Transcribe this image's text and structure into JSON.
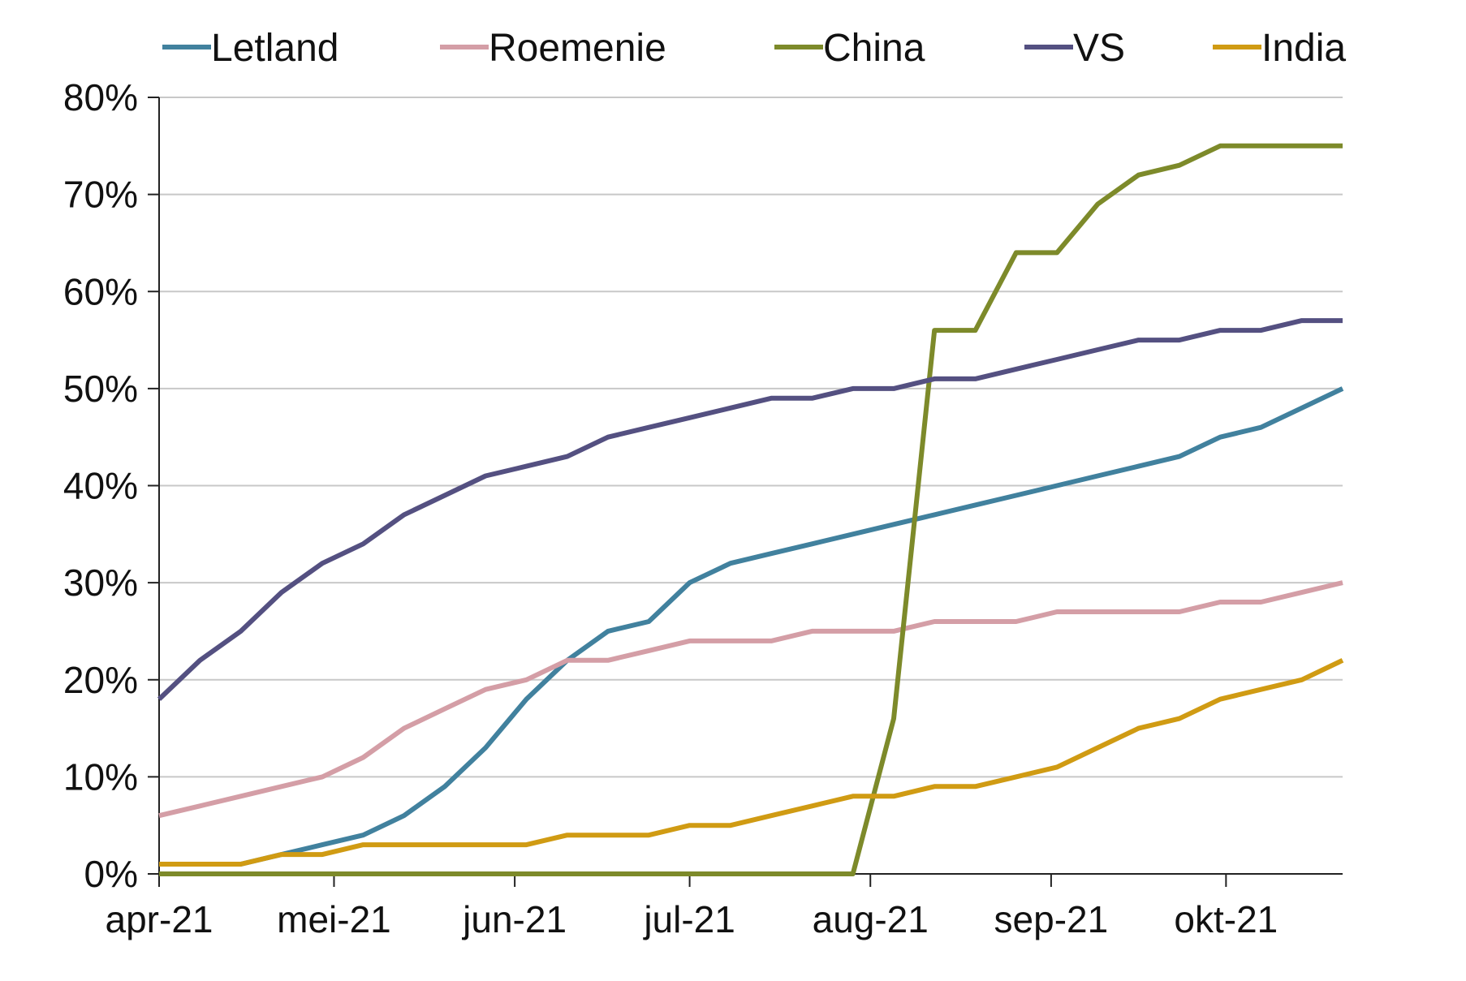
{
  "chart_data": {
    "type": "line",
    "title": "",
    "xlabel": "",
    "ylabel": "",
    "x_tick_labels": [
      "apr-21",
      "mei-21",
      "jun-21",
      "jul-21",
      "aug-21",
      "sep-21",
      "okt-21"
    ],
    "y_tick_labels": [
      "0%",
      "10%",
      "20%",
      "30%",
      "40%",
      "50%",
      "60%",
      "70%",
      "80%"
    ],
    "y_tick_values": [
      0,
      10,
      20,
      30,
      40,
      50,
      60,
      70,
      80
    ],
    "ylim": [
      0,
      80
    ],
    "x_range": [
      "2021-04-01",
      "2021-10-21"
    ],
    "grid": "horizontal",
    "legend_position": "top",
    "series": [
      {
        "name": "Letland",
        "color": "#41819e",
        "points": [
          [
            "2021-04-01",
            1
          ],
          [
            "2021-04-08",
            1
          ],
          [
            "2021-04-15",
            1
          ],
          [
            "2021-04-22",
            2
          ],
          [
            "2021-04-29",
            3
          ],
          [
            "2021-05-06",
            4
          ],
          [
            "2021-05-13",
            6
          ],
          [
            "2021-05-20",
            9
          ],
          [
            "2021-05-27",
            13
          ],
          [
            "2021-06-03",
            18
          ],
          [
            "2021-06-10",
            22
          ],
          [
            "2021-06-17",
            25
          ],
          [
            "2021-06-24",
            26
          ],
          [
            "2021-07-01",
            30
          ],
          [
            "2021-07-08",
            32
          ],
          [
            "2021-07-15",
            33
          ],
          [
            "2021-07-22",
            34
          ],
          [
            "2021-07-29",
            35
          ],
          [
            "2021-08-05",
            36
          ],
          [
            "2021-08-12",
            37
          ],
          [
            "2021-08-19",
            38
          ],
          [
            "2021-08-26",
            39
          ],
          [
            "2021-09-02",
            40
          ],
          [
            "2021-09-09",
            41
          ],
          [
            "2021-09-16",
            42
          ],
          [
            "2021-09-23",
            43
          ],
          [
            "2021-09-30",
            45
          ],
          [
            "2021-10-07",
            46
          ],
          [
            "2021-10-14",
            48
          ],
          [
            "2021-10-21",
            50
          ]
        ]
      },
      {
        "name": "Roemenie",
        "color": "#d49ea6",
        "points": [
          [
            "2021-04-01",
            6
          ],
          [
            "2021-04-08",
            7
          ],
          [
            "2021-04-15",
            8
          ],
          [
            "2021-04-22",
            9
          ],
          [
            "2021-04-29",
            10
          ],
          [
            "2021-05-06",
            12
          ],
          [
            "2021-05-13",
            15
          ],
          [
            "2021-05-20",
            17
          ],
          [
            "2021-05-27",
            19
          ],
          [
            "2021-06-03",
            20
          ],
          [
            "2021-06-10",
            22
          ],
          [
            "2021-06-17",
            22
          ],
          [
            "2021-06-24",
            23
          ],
          [
            "2021-07-01",
            24
          ],
          [
            "2021-07-08",
            24
          ],
          [
            "2021-07-15",
            24
          ],
          [
            "2021-07-22",
            25
          ],
          [
            "2021-07-29",
            25
          ],
          [
            "2021-08-05",
            25
          ],
          [
            "2021-08-12",
            26
          ],
          [
            "2021-08-19",
            26
          ],
          [
            "2021-08-26",
            26
          ],
          [
            "2021-09-02",
            27
          ],
          [
            "2021-09-09",
            27
          ],
          [
            "2021-09-16",
            27
          ],
          [
            "2021-09-23",
            27
          ],
          [
            "2021-09-30",
            28
          ],
          [
            "2021-10-07",
            28
          ],
          [
            "2021-10-14",
            29
          ],
          [
            "2021-10-21",
            30
          ]
        ]
      },
      {
        "name": "China",
        "color": "#7d8a2a",
        "points": [
          [
            "2021-04-01",
            0
          ],
          [
            "2021-07-29",
            0
          ],
          [
            "2021-08-05",
            16
          ],
          [
            "2021-08-12",
            56
          ],
          [
            "2021-08-19",
            56
          ],
          [
            "2021-08-26",
            64
          ],
          [
            "2021-09-02",
            64
          ],
          [
            "2021-09-09",
            69
          ],
          [
            "2021-09-16",
            72
          ],
          [
            "2021-09-23",
            73
          ],
          [
            "2021-09-30",
            75
          ],
          [
            "2021-10-07",
            75
          ],
          [
            "2021-10-14",
            75
          ],
          [
            "2021-10-21",
            75
          ]
        ]
      },
      {
        "name": "VS",
        "color": "#545081",
        "points": [
          [
            "2021-04-01",
            18
          ],
          [
            "2021-04-08",
            22
          ],
          [
            "2021-04-15",
            25
          ],
          [
            "2021-04-22",
            29
          ],
          [
            "2021-04-29",
            32
          ],
          [
            "2021-05-06",
            34
          ],
          [
            "2021-05-13",
            37
          ],
          [
            "2021-05-20",
            39
          ],
          [
            "2021-05-27",
            41
          ],
          [
            "2021-06-03",
            42
          ],
          [
            "2021-06-10",
            43
          ],
          [
            "2021-06-17",
            45
          ],
          [
            "2021-06-24",
            46
          ],
          [
            "2021-07-01",
            47
          ],
          [
            "2021-07-08",
            48
          ],
          [
            "2021-07-15",
            49
          ],
          [
            "2021-07-22",
            49
          ],
          [
            "2021-07-29",
            50
          ],
          [
            "2021-08-05",
            50
          ],
          [
            "2021-08-12",
            51
          ],
          [
            "2021-08-19",
            51
          ],
          [
            "2021-08-26",
            52
          ],
          [
            "2021-09-02",
            53
          ],
          [
            "2021-09-09",
            54
          ],
          [
            "2021-09-16",
            55
          ],
          [
            "2021-09-23",
            55
          ],
          [
            "2021-09-30",
            56
          ],
          [
            "2021-10-07",
            56
          ],
          [
            "2021-10-14",
            57
          ],
          [
            "2021-10-21",
            57
          ]
        ]
      },
      {
        "name": "India",
        "color": "#d09b13",
        "points": [
          [
            "2021-04-01",
            1
          ],
          [
            "2021-04-08",
            1
          ],
          [
            "2021-04-15",
            1
          ],
          [
            "2021-04-22",
            2
          ],
          [
            "2021-04-29",
            2
          ],
          [
            "2021-05-06",
            3
          ],
          [
            "2021-05-13",
            3
          ],
          [
            "2021-05-20",
            3
          ],
          [
            "2021-05-27",
            3
          ],
          [
            "2021-06-03",
            3
          ],
          [
            "2021-06-10",
            4
          ],
          [
            "2021-06-17",
            4
          ],
          [
            "2021-06-24",
            4
          ],
          [
            "2021-07-01",
            5
          ],
          [
            "2021-07-08",
            5
          ],
          [
            "2021-07-15",
            6
          ],
          [
            "2021-07-22",
            7
          ],
          [
            "2021-07-29",
            8
          ],
          [
            "2021-08-05",
            8
          ],
          [
            "2021-08-12",
            9
          ],
          [
            "2021-08-19",
            9
          ],
          [
            "2021-08-26",
            10
          ],
          [
            "2021-09-02",
            11
          ],
          [
            "2021-09-09",
            13
          ],
          [
            "2021-09-16",
            15
          ],
          [
            "2021-09-23",
            16
          ],
          [
            "2021-09-30",
            18
          ],
          [
            "2021-10-07",
            19
          ],
          [
            "2021-10-14",
            20
          ],
          [
            "2021-10-21",
            22
          ]
        ]
      }
    ]
  }
}
